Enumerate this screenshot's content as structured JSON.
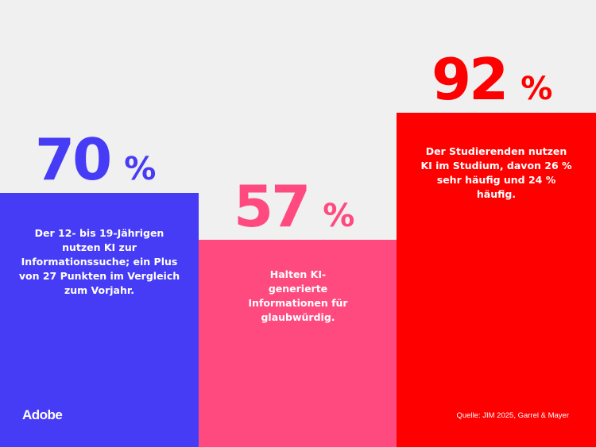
{
  "chart_data": {
    "type": "bar",
    "ylim": [
      0,
      123
    ],
    "bars": [
      {
        "value": 70,
        "value_label": "70",
        "unit": "%",
        "color": "#473cf5",
        "description": "Der 12- bis 19-Jährigen nutzen KI zur Informationssuche; ein Plus von 27 Punkten im Vergleich zum Vorjahr."
      },
      {
        "value": 57,
        "value_label": "57",
        "unit": "%",
        "color": "#ff4a80",
        "description": "Halten KI-generierte Informationen für glaubwürdig."
      },
      {
        "value": 92,
        "value_label": "92",
        "unit": "%",
        "color": "#ff0000",
        "description": "Der Studierenden nutzen KI im Studium, davon 26 % sehr häufig und 24 % häufig."
      }
    ]
  },
  "footer": {
    "logo": "Adobe",
    "source": "Quelle: JIM 2025, Garrel & Mayer"
  },
  "background": "#f0f0f0"
}
